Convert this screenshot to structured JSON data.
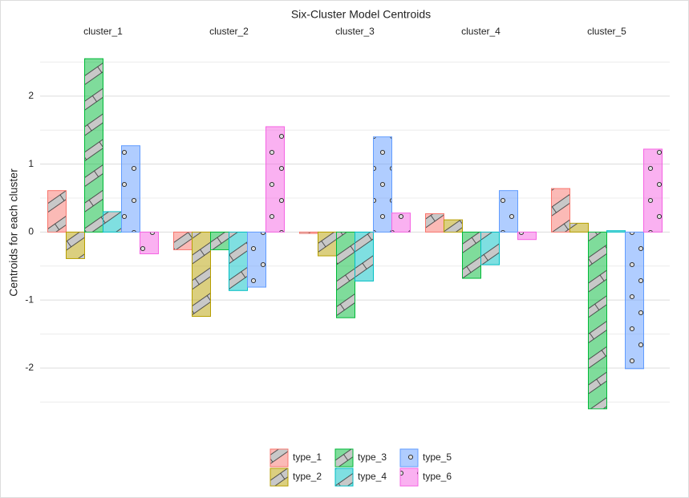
{
  "chart_data": {
    "type": "bar",
    "title": "Six-Cluster Model Centroids",
    "y_label": "Centroids for each cluster",
    "categories": [
      "cluster_1",
      "cluster_2",
      "cluster_3",
      "cluster_4",
      "cluster_5"
    ],
    "series": [
      {
        "name": "type_1",
        "color": "#f8766d",
        "pattern": "stripe",
        "values": [
          0.61,
          -0.26,
          -0.02,
          0.27,
          0.64
        ]
      },
      {
        "name": "type_2",
        "color": "#b79f00",
        "pattern": "stripe",
        "values": [
          -0.39,
          -1.24,
          -0.35,
          0.18,
          0.13
        ]
      },
      {
        "name": "type_3",
        "color": "#00ba38",
        "pattern": "stripe",
        "values": [
          2.55,
          -0.26,
          -1.26,
          -0.68,
          -2.6
        ]
      },
      {
        "name": "type_4",
        "color": "#00bfc4",
        "pattern": "stripe",
        "values": [
          0.3,
          -0.86,
          -0.72,
          -0.48,
          0.02
        ]
      },
      {
        "name": "type_5",
        "color": "#619cff",
        "pattern": "circle",
        "values": [
          1.27,
          -0.81,
          1.4,
          0.61,
          -2.01
        ]
      },
      {
        "name": "type_6",
        "color": "#f564e3",
        "pattern": "circle",
        "values": [
          -0.32,
          1.55,
          0.28,
          -0.11,
          1.22
        ]
      }
    ],
    "ylim": [
      -2.85,
      2.8
    ],
    "yticks": [
      -2,
      -1,
      0,
      1,
      2
    ],
    "yticks_minor": [
      -2.5,
      -1.5,
      -0.5,
      0.5,
      1.5,
      2.5
    ],
    "grid": true,
    "legend": "bottom"
  }
}
